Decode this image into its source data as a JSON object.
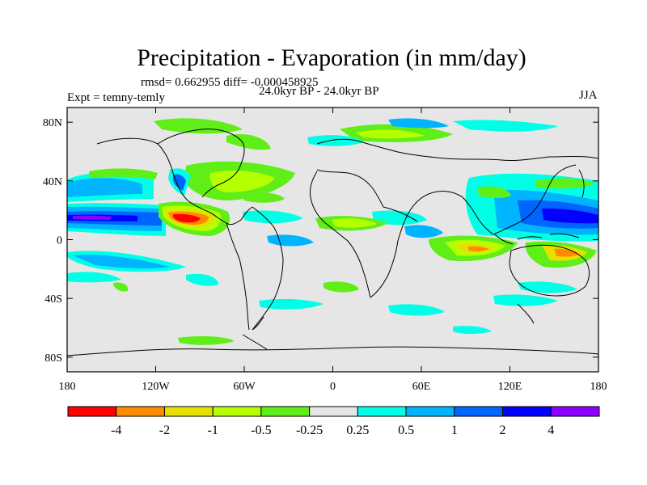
{
  "title": "Precipitation - Evaporation (in mm/day)",
  "stats_line": "rmsd= 0.662955 diff= -0.000458925",
  "period_line": "24.0kyr BP - 24.0kyr BP",
  "expt_line": "Expt = temny-temly",
  "season": "JJA",
  "map": {
    "projection": "cylindrical equidistant",
    "lon_range": [
      -180,
      180
    ],
    "lat_range": [
      -90,
      90
    ],
    "lon_ticks": [
      {
        "value": -180,
        "label": "180"
      },
      {
        "value": -120,
        "label": "120W"
      },
      {
        "value": -60,
        "label": "60W"
      },
      {
        "value": 0,
        "label": "0"
      },
      {
        "value": 60,
        "label": "60E"
      },
      {
        "value": 120,
        "label": "120E"
      },
      {
        "value": 180,
        "label": "180"
      }
    ],
    "lat_ticks": [
      {
        "value": 80,
        "label": "80N"
      },
      {
        "value": 40,
        "label": "40N"
      },
      {
        "value": 0,
        "label": "0"
      },
      {
        "value": -40,
        "label": "40S"
      },
      {
        "value": -80,
        "label": "80S"
      }
    ],
    "background_color": "#e6e6e6"
  },
  "colorbar": {
    "colors": [
      "#ff0000",
      "#ff8c00",
      "#e6e000",
      "#b4ff00",
      "#60ee18",
      "#e6e6e6",
      "#00ffe6",
      "#00b4ff",
      "#0064ff",
      "#0000ff",
      "#8c00ff"
    ],
    "labels": [
      "-4",
      "-2",
      "-1",
      "-0.5",
      "-0.25",
      "0.25",
      "0.5",
      "1",
      "2",
      "4"
    ]
  }
}
